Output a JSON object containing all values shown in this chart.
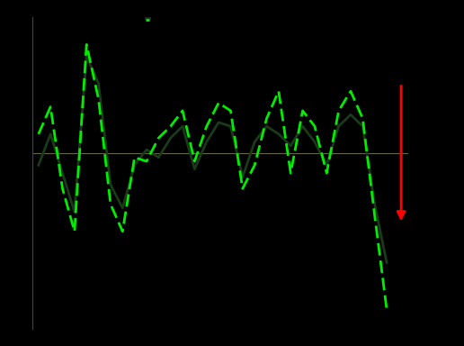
{
  "background_color": "#000000",
  "line_color_solid": "#1a3a1a",
  "line_color_dashed": "#00ee00",
  "zero_line_color": "#666644",
  "arrow_color": "#ff0000",
  "single_family": [
    -3,
    5,
    -5,
    -15,
    25,
    18,
    -8,
    -14,
    -3,
    1,
    -1,
    4,
    7,
    -4,
    3,
    8,
    7,
    -6,
    3,
    7,
    5,
    2,
    7,
    3,
    -3,
    7,
    10,
    7,
    -13,
    -28
  ],
  "condo": [
    5,
    12,
    -9,
    -20,
    28,
    14,
    -13,
    -20,
    -1,
    -2,
    4,
    7,
    11,
    -2,
    7,
    13,
    11,
    -9,
    -3,
    9,
    16,
    -5,
    11,
    7,
    -5,
    11,
    16,
    9,
    -16,
    -40
  ],
  "ylim": [
    -45,
    35
  ],
  "n_points": 30,
  "figsize": [
    5.16,
    3.84
  ],
  "dpi": 100
}
